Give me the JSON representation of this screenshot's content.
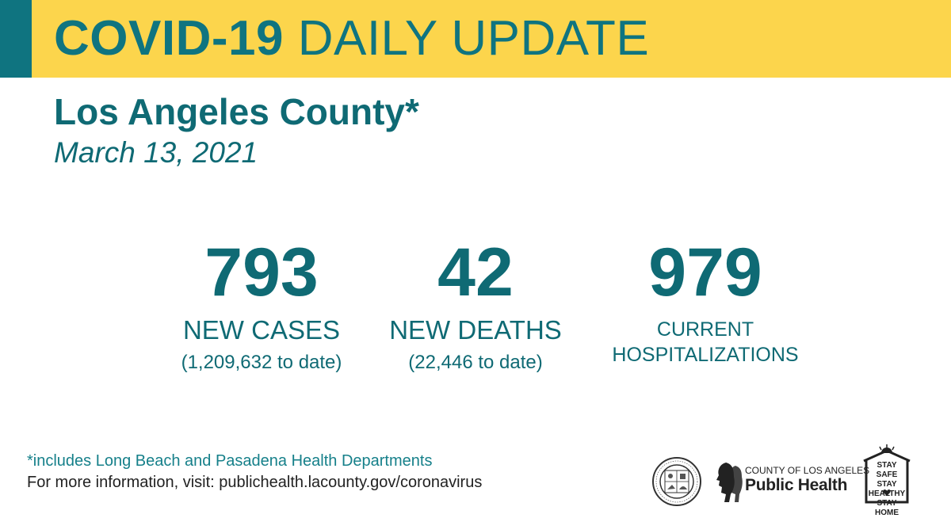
{
  "header": {
    "title_bold": "COVID-19",
    "title_light": "DAILY UPDATE"
  },
  "region": "Los Angeles County*",
  "date": "March 13, 2021",
  "stats": {
    "cases": {
      "value": "793",
      "label": "NEW CASES",
      "sub": "(1,209,632 to date)"
    },
    "deaths": {
      "value": "42",
      "label": "NEW DEATHS",
      "sub": "(22,446 to date)"
    },
    "hospitalizations": {
      "value": "979",
      "label_line1": "CURRENT",
      "label_line2": "HOSPITALIZATIONS"
    }
  },
  "footer": {
    "footnote": "*includes Long Beach and Pasadena Health Departments",
    "more_info": "For more information, visit: publichealth.lacounty.gov/coronavirus"
  },
  "logos": {
    "seal_icon": "county-seal-icon",
    "public_health_small": "COUNTY OF LOS ANGELES",
    "public_health_big": "Public Health",
    "stay_line1": "STAY SAFE",
    "stay_line2": "STAY HEALTHY",
    "stay_line3": "STAY HOME"
  },
  "colors": {
    "banner": "#fcd54c",
    "accent": "#0f7480",
    "text": "#0f6a74"
  }
}
